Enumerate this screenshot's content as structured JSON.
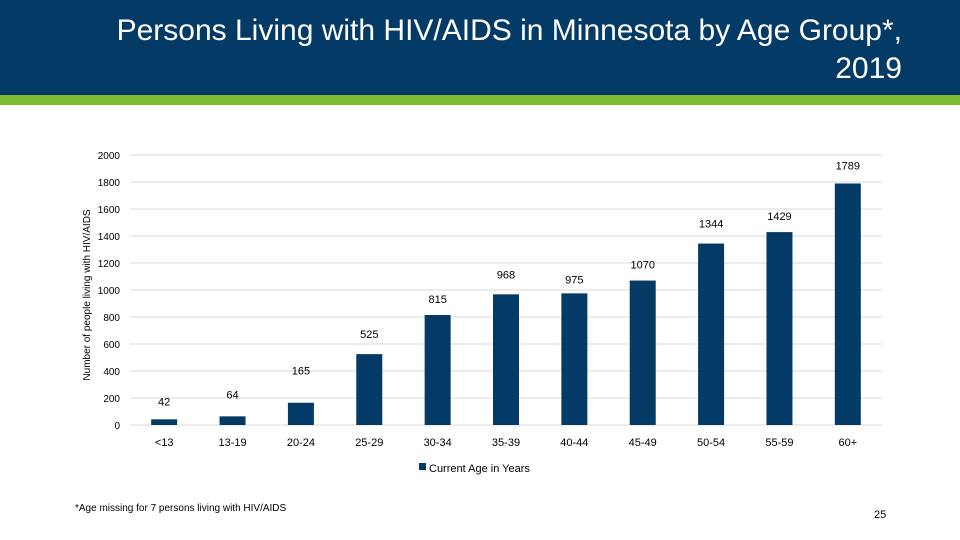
{
  "slide": {
    "title": "Persons Living with HIV/AIDS in Minnesota by Age Group*, 2019",
    "footnote": "*Age missing for 7 persons living with HIV/AIDS",
    "page_number": "25"
  },
  "colors": {
    "header": "#043a66",
    "accent": "#7ebd2f",
    "bar": "#043a66",
    "grid": "#d9d9d9"
  },
  "chart_data": {
    "type": "bar",
    "categories": [
      "<13",
      "13-19",
      "20-24",
      "25-29",
      "30-34",
      "35-39",
      "40-44",
      "45-49",
      "50-54",
      "55-59",
      "60+"
    ],
    "series": [
      {
        "name": "Current Age in Years",
        "values": [
          42,
          64,
          165,
          525,
          815,
          968,
          975,
          1070,
          1344,
          1429,
          1789
        ]
      }
    ],
    "title": "",
    "xlabel": "",
    "ylabel": "Number of people living with HIV/AIDS",
    "ylim": [
      0,
      2000
    ],
    "yticks": [
      0,
      200,
      400,
      600,
      800,
      1000,
      1200,
      1400,
      1600,
      1800,
      2000
    ],
    "grid": true,
    "legend": "bottom-center"
  }
}
